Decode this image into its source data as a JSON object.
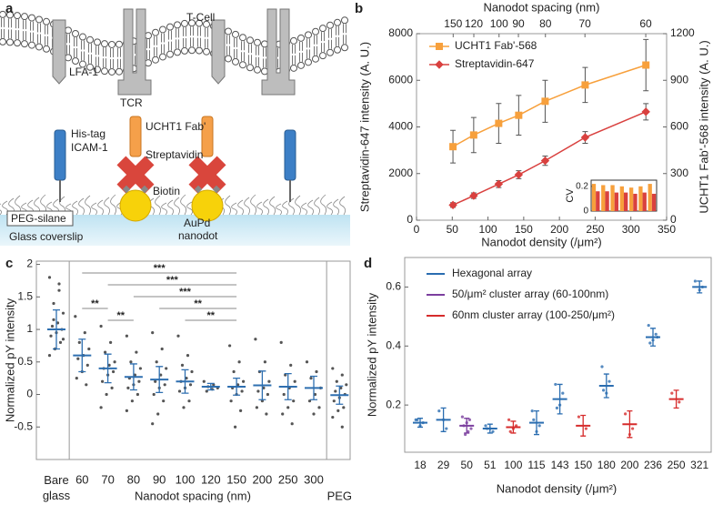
{
  "diagram": {
    "panel_label": "a",
    "labels": {
      "cell": "T-Cell",
      "lfa": "LFA-1",
      "tcr": "TCR",
      "fab": "UCHT1 Fab'",
      "his": "His-tag",
      "icam": "ICAM-1",
      "strep": "Streptavidin",
      "biotin": "Biotin",
      "peg": "PEG-silane",
      "aupd": "AuPd",
      "nanodot": "nanodot",
      "glass": "Glass coverslip"
    }
  },
  "chart_data": [
    {
      "type": "line",
      "panel_label": "b",
      "x2label": "Nanodot spacing (nm)",
      "xlabel": "Nanodot density (/μm²)",
      "ylabel": "Streptavidin-647 intensity (A. U.)",
      "y2label": "UCHT1 Fab'-568 intensity (A. U.)",
      "xlim": [
        0,
        350
      ],
      "xticks": [
        0,
        50,
        100,
        150,
        200,
        250,
        300,
        350
      ],
      "x2ticks": [
        {
          "value": 51.3,
          "label": "150"
        },
        {
          "value": 80.2,
          "label": "120"
        },
        {
          "value": 115.5,
          "label": "100"
        },
        {
          "value": 142.6,
          "label": "90"
        },
        {
          "value": 180.4,
          "label": "80"
        },
        {
          "value": 235.7,
          "label": "70"
        },
        {
          "value": 320.8,
          "label": "60"
        }
      ],
      "ylim": [
        0,
        8000
      ],
      "yticks": [
        0,
        2000,
        4000,
        6000,
        8000
      ],
      "y2lim": [
        0,
        1200
      ],
      "y2ticks": [
        0,
        300,
        600,
        900,
        1200
      ],
      "legend": "upper left",
      "series": [
        {
          "name": "UCHT1 Fab'-568",
          "color": "#f7a03c",
          "marker": "square",
          "axis": "y2",
          "x": [
            51,
            80,
            115,
            143,
            180,
            236,
            321
          ],
          "values": [
            473,
            548,
            623,
            675,
            765,
            870,
            998
          ],
          "errors": [
            105,
            113,
            128,
            128,
            135,
            113,
            165
          ]
        },
        {
          "name": "Streptavidin-647",
          "color": "#d9413f",
          "marker": "diamond",
          "x": [
            51,
            80,
            115,
            143,
            180,
            236,
            321
          ],
          "values": [
            650,
            1050,
            1550,
            1950,
            2550,
            3550,
            4650
          ],
          "errors": [
            100,
            120,
            150,
            170,
            200,
            250,
            350
          ]
        }
      ],
      "inset": {
        "type": "bar",
        "ylabel": "CV",
        "categories": [
          null,
          null,
          null,
          null,
          null,
          null,
          null
        ],
        "ylim": [
          0,
          0.25
        ],
        "yticks": [
          0,
          0.2
        ],
        "series": [
          {
            "color": "#f7a03c",
            "values": [
              0.22,
              0.21,
              0.21,
              0.2,
              0.19,
              0.2,
              0.22
            ]
          },
          {
            "color": "#d9413f",
            "values": [
              0.16,
              0.16,
              0.15,
              0.15,
              0.14,
              0.15,
              0.14
            ]
          }
        ]
      }
    },
    {
      "type": "strip",
      "panel_label": "c",
      "ylabel": "Normalized pY intensity",
      "xlabel": "Nanodot spacing (nm)",
      "categories": [
        "Bare glass",
        "60",
        "70",
        "80",
        "90",
        "100",
        "120",
        "150",
        "200",
        "250",
        "300",
        "PEG"
      ],
      "ylim": [
        -1,
        2.05
      ],
      "yticks": [
        -0.5,
        0,
        0.5,
        1,
        1.5,
        2
      ],
      "color": "#2e6fb0",
      "point_color": "#555555",
      "values": [
        1.0,
        0.6,
        0.4,
        0.27,
        0.23,
        0.2,
        0.12,
        0.12,
        0.14,
        0.12,
        0.1,
        -0.01
      ],
      "errors": [
        0.3,
        0.25,
        0.22,
        0.2,
        0.2,
        0.18,
        0.05,
        0.13,
        0.22,
        0.2,
        0.18,
        0.14
      ],
      "points": [
        [
          1.8,
          1.6,
          1.4,
          1.25,
          1.1,
          1.05,
          1.0,
          0.95,
          0.9,
          0.8,
          0.7,
          0.6,
          1.7,
          1.15,
          0.85
        ],
        [
          1.2,
          0.95,
          0.8,
          0.7,
          0.6,
          0.55,
          0.45,
          0.35,
          0.25,
          0.15
        ],
        [
          1.05,
          0.8,
          0.65,
          0.5,
          0.45,
          0.4,
          0.35,
          0.3,
          0.2,
          0.1,
          0.0,
          -0.2
        ],
        [
          0.9,
          0.65,
          0.5,
          0.4,
          0.3,
          0.25,
          0.2,
          0.15,
          0.1,
          0.0,
          -0.1,
          -0.25
        ],
        [
          0.95,
          0.7,
          0.5,
          0.4,
          0.3,
          0.2,
          0.15,
          0.1,
          0.0,
          -0.1,
          -0.3,
          -0.45
        ],
        [
          0.9,
          0.6,
          0.45,
          0.35,
          0.25,
          0.2,
          0.15,
          0.1,
          0.05,
          -0.1,
          -0.2
        ],
        [
          0.2,
          0.15,
          0.12,
          0.1,
          0.08,
          0.05
        ],
        [
          0.75,
          0.5,
          0.35,
          0.2,
          0.15,
          0.1,
          0.05,
          0.0,
          -0.1,
          -0.25,
          -0.5
        ],
        [
          0.85,
          0.5,
          0.35,
          0.2,
          0.1,
          0.05,
          0.0,
          -0.1,
          -0.2,
          -0.3
        ],
        [
          0.8,
          0.45,
          0.3,
          0.2,
          0.1,
          0.0,
          -0.1,
          -0.2,
          -0.3,
          -0.45
        ],
        [
          0.5,
          0.35,
          0.25,
          0.1,
          0.0,
          -0.1,
          -0.2,
          -0.3
        ],
        [
          0.4,
          0.3,
          0.2,
          0.15,
          0.1,
          0.05,
          0.0,
          -0.05,
          -0.1,
          -0.2,
          -0.25,
          -0.35,
          -0.5
        ]
      ],
      "comparisons": [
        {
          "pair": [
            "60",
            "150"
          ],
          "label": "***"
        },
        {
          "pair": [
            "70",
            "150"
          ],
          "label": "***"
        },
        {
          "pair": [
            "80",
            "150"
          ],
          "label": "***"
        },
        {
          "pair": [
            "60",
            "70"
          ],
          "label": "**"
        },
        {
          "pair": [
            "90",
            "150"
          ],
          "label": "**"
        },
        {
          "pair": [
            "70",
            "80"
          ],
          "label": "**"
        },
        {
          "pair": [
            "100",
            "150"
          ],
          "label": "**"
        }
      ]
    },
    {
      "type": "errorbar",
      "panel_label": "d",
      "ylabel": "Normalized pY intensity",
      "xlabel": "Nanodot density (/μm²)",
      "categories": [
        "18",
        "29",
        "50",
        "51",
        "100",
        "115",
        "143",
        "150",
        "180",
        "200",
        "236",
        "250",
        "321"
      ],
      "ylim": [
        0.04,
        0.7
      ],
      "yticks": [
        0.2,
        0.4,
        0.6
      ],
      "legend": "upper left",
      "series": [
        {
          "name": "Hexagonal array",
          "color": "#2a6db0",
          "values": [
            0.14,
            0.15,
            null,
            0.12,
            null,
            0.14,
            0.22,
            null,
            0.265,
            null,
            0.43,
            null,
            0.6
          ],
          "errors": [
            0.015,
            0.04,
            null,
            0.015,
            null,
            0.04,
            0.05,
            null,
            0.04,
            null,
            0.03,
            null,
            0.02
          ],
          "points": [
            [
              0.15,
              0.14,
              0.13,
              0.15
            ],
            [
              0.18,
              0.12,
              0.15
            ],
            null,
            [
              0.13,
              0.11,
              0.12,
              0.12
            ],
            null,
            [
              0.18,
              0.13,
              0.11,
              0.15
            ],
            [
              0.27,
              0.24,
              0.2,
              0.19
            ],
            null,
            [
              0.33,
              0.28,
              0.24,
              0.25
            ],
            null,
            [
              0.47,
              0.44,
              0.42,
              0.41,
              0.43
            ],
            null,
            [
              0.62,
              0.6,
              0.59
            ]
          ]
        },
        {
          "name": "50/μm² cluster array (60-100nm)",
          "color": "#7b3f9e",
          "values": [
            null,
            null,
            0.13,
            null,
            null,
            null,
            null,
            null,
            null,
            null,
            null,
            null,
            null
          ],
          "errors": [
            null,
            null,
            0.025,
            null,
            null,
            null,
            null,
            null,
            null,
            null,
            null,
            null,
            null
          ],
          "points": [
            null,
            null,
            [
              0.16,
              0.15,
              0.14,
              0.13,
              0.12,
              0.11,
              0.1
            ],
            null,
            null,
            null,
            null,
            null,
            null,
            null,
            null,
            null,
            null
          ]
        },
        {
          "name": "60nm cluster array (100-250/μm²)",
          "color": "#d62b2b",
          "values": [
            null,
            null,
            null,
            null,
            0.125,
            null,
            null,
            0.13,
            null,
            0.135,
            null,
            0.22,
            null
          ],
          "errors": [
            null,
            null,
            null,
            null,
            0.02,
            null,
            null,
            0.035,
            null,
            0.045,
            null,
            0.03,
            null
          ],
          "points": [
            null,
            null,
            null,
            null,
            [
              0.15,
              0.13,
              0.12,
              0.11
            ],
            null,
            null,
            [
              0.16,
              0.12
            ],
            null,
            [
              0.17,
              0.12,
              0.1
            ],
            null,
            [
              0.24,
              0.21
            ],
            null
          ]
        }
      ]
    }
  ]
}
